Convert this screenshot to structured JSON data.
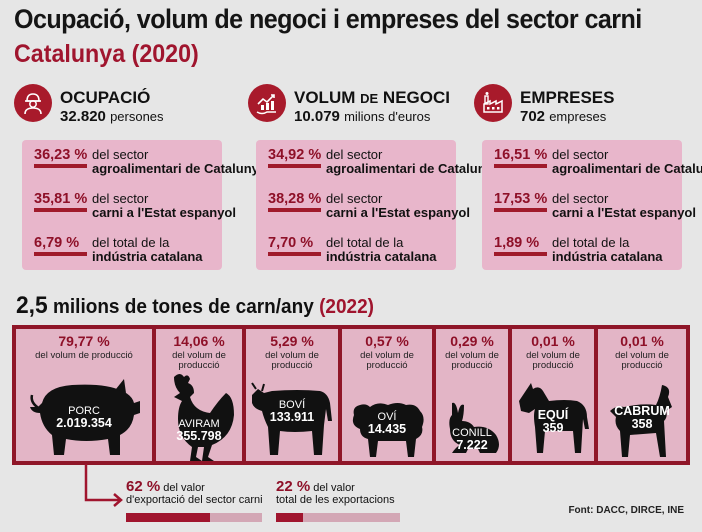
{
  "title": "Ocupació, volum de negoci i empreses del sector carni",
  "subtitle": "Catalunya (2020)",
  "colors": {
    "accent": "#a0152e",
    "pink": "#e8b6cb",
    "background": "#e6e6e6"
  },
  "sections": [
    {
      "icon": "worker-icon",
      "title": "OCUPACIÓ",
      "value": "32.820",
      "unit": "persones",
      "stats": [
        {
          "pct": "36,23 %",
          "text": "del sector",
          "bold": "agroalimentari de Catalunya"
        },
        {
          "pct": "35,81 %",
          "text": "del sector",
          "bold": "carni a l'Estat espanyol"
        },
        {
          "pct": "6,79 %",
          "text": "del total de la",
          "bold": "indústria catalana"
        }
      ]
    },
    {
      "icon": "business-volume-icon",
      "title": "VOLUM",
      "title_small": "DE",
      "title_end": "NEGOCI",
      "value": "10.079",
      "unit": "milions d'euros",
      "stats": [
        {
          "pct": "34,92 %",
          "text": "del sector",
          "bold": "agroalimentari de Catalunya"
        },
        {
          "pct": "38,28 %",
          "text": "del sector",
          "bold": "carni a l'Estat espanyol"
        },
        {
          "pct": "7,70 %",
          "text": "del total de la",
          "bold": "indústria catalana"
        }
      ]
    },
    {
      "icon": "factory-icon",
      "title": "EMPRESES",
      "value": "702",
      "unit": "empreses",
      "stats": [
        {
          "pct": "16,51 %",
          "text": "del sector",
          "bold": "agroalimentari de Catalunya"
        },
        {
          "pct": "17,53 %",
          "text": "del sector",
          "bold": "carni a l'Estat espanyol"
        },
        {
          "pct": "1,89 %",
          "text": "del total de la",
          "bold": "indústria catalana"
        }
      ]
    }
  ],
  "tonnage": {
    "value": "2,5",
    "text": "milions de tones de carn/any",
    "year": "(2022)"
  },
  "animals_caption": "del volum de producció",
  "animals": [
    {
      "pct": "79,77 %",
      "name": "PORC",
      "amount": "2.019.354",
      "icon": "pig-icon"
    },
    {
      "pct": "14,06 %",
      "name": "AVIRAM",
      "amount": "355.798",
      "icon": "chicken-icon"
    },
    {
      "pct": "5,29 %",
      "name": "BOVÍ",
      "amount": "133.911",
      "icon": "cow-icon"
    },
    {
      "pct": "0,57 %",
      "name": "OVÍ",
      "amount": "14.435",
      "icon": "sheep-icon"
    },
    {
      "pct": "0,29 %",
      "name": "CONILL",
      "amount": "7.222",
      "icon": "rabbit-icon"
    },
    {
      "pct": "0,01 %",
      "name": "EQUÍ",
      "amount": "359",
      "icon": "horse-icon"
    },
    {
      "pct": "0,01 %",
      "name": "CABRUM",
      "amount": "358",
      "icon": "goat-icon"
    }
  ],
  "exports": [
    {
      "pct": "62 %",
      "text1": "del valor",
      "text2": "d'exportació del sector carni",
      "share": 0.62
    },
    {
      "pct": "22 %",
      "text1": "del valor",
      "text2": "total de les exportacions",
      "share": 0.22
    }
  ],
  "source": "Font: DACC, DIRCE, INE"
}
